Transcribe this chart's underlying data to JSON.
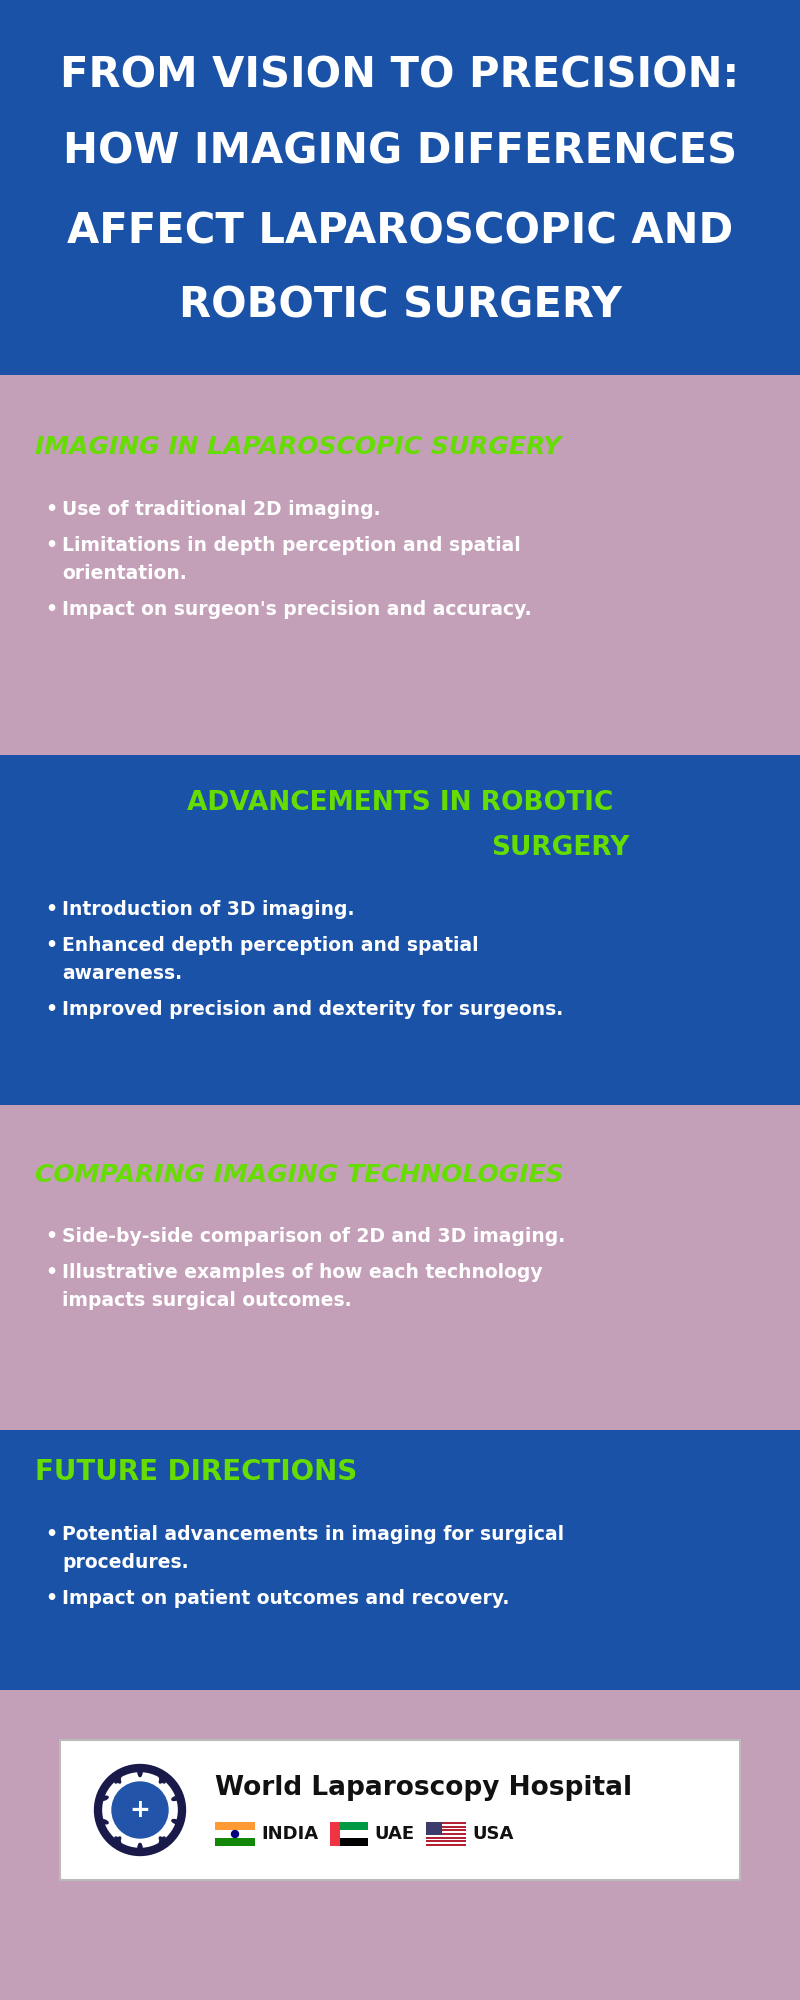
{
  "title_lines": [
    "FROM VISION TO PRECISION:",
    "HOW IMAGING DIFFERENCES",
    "AFFECT LAPAROSCOPIC AND",
    "ROBOTIC SURGERY"
  ],
  "title_bg": "#1a52a8",
  "title_text_color": "#ffffff",
  "overall_bg": "#c4a0b8",
  "section1_bg": "#c4a0b8",
  "section1_title": "IMAGING IN LAPAROSCOPIC SURGERY",
  "section1_title_color": "#66dd00",
  "section1_bullets": [
    "Use of traditional 2D imaging.",
    "Limitations in depth perception and spatial\norientation.",
    "Impact on surgeon's precision and accuracy."
  ],
  "section1_bullet_color": "#ffffff",
  "section2_bg": "#1a52a8",
  "section2_title_line1": "ADVANCEMENTS IN ROBOTIC",
  "section2_title_line2": "SURGERY",
  "section2_title_color": "#66dd00",
  "section2_bullets": [
    "Introduction of 3D imaging.",
    "Enhanced depth perception and spatial\nawareness.",
    "Improved precision and dexterity for surgeons."
  ],
  "section2_bullet_color": "#ffffff",
  "section3_bg": "#c4a0b8",
  "section3_title": "COMPARING IMAGING TECHNOLOGIES",
  "section3_title_color": "#66dd00",
  "section3_bullets": [
    "Side-by-side comparison of 2D and 3D imaging.",
    "Illustrative examples of how each technology\nimpacts surgical outcomes."
  ],
  "section3_bullet_color": "#ffffff",
  "section4_bg": "#1a52a8",
  "section4_title": "FUTURE DIRECTIONS",
  "section4_title_color": "#66dd00",
  "section4_bullets": [
    "Potential advancements in imaging for surgical\nprocedures.",
    "Impact on patient outcomes and recovery."
  ],
  "section4_bullet_color": "#ffffff",
  "footer_bg": "#ffffff",
  "footer_text": "World Laparoscopy Hospital",
  "gap_color": "#c4a0b8"
}
